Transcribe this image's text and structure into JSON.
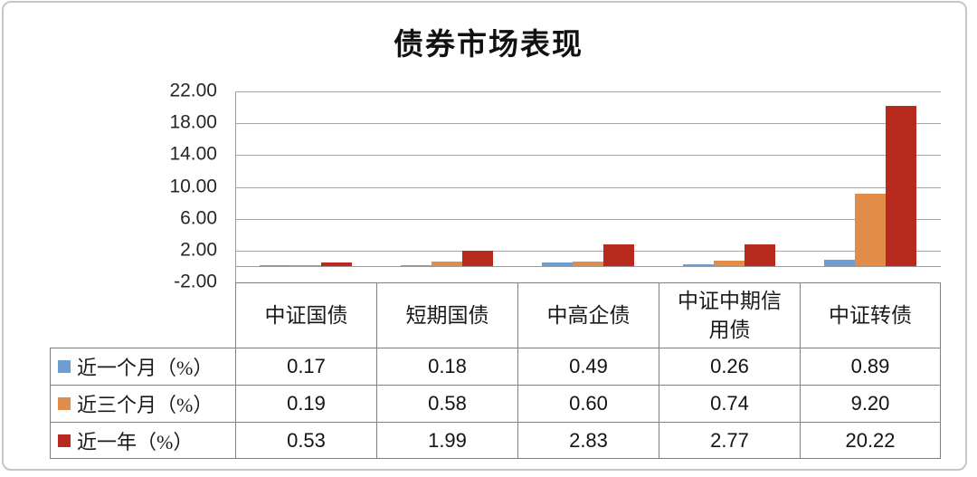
{
  "chart_data": {
    "type": "bar",
    "title": "债券市场表现",
    "categories": [
      "中证国债",
      "短期国债",
      "中高企债",
      "中证中期信用债",
      "中证转债"
    ],
    "series": [
      {
        "name": "近一个月（%）",
        "color": "#6d9ed3",
        "values": [
          0.17,
          0.18,
          0.49,
          0.26,
          0.89
        ]
      },
      {
        "name": "近三个月（%）",
        "color": "#e28c49",
        "values": [
          0.19,
          0.58,
          0.6,
          0.74,
          9.2
        ]
      },
      {
        "name": "近一年（%）",
        "color": "#b82a1d",
        "values": [
          0.53,
          1.99,
          2.83,
          2.77,
          20.22
        ]
      }
    ],
    "y_ticks": [
      "22.00",
      "18.00",
      "14.00",
      "10.00",
      "6.00",
      "2.00",
      "-2.00"
    ],
    "ylim": [
      -2,
      22
    ],
    "y_tick_step": 4,
    "grid": true,
    "legend_position": "left-of-table-rows",
    "value_format": "0.00",
    "xlabel": "",
    "ylabel": ""
  },
  "colors": {
    "series_blue": "#6d9ed3",
    "series_orange": "#e28c49",
    "series_red": "#b82a1d",
    "gridline": "#a6a6a6",
    "table_border": "#7f7f7f",
    "frame_border": "#c6c6c6",
    "text": "#1a1a1a"
  }
}
